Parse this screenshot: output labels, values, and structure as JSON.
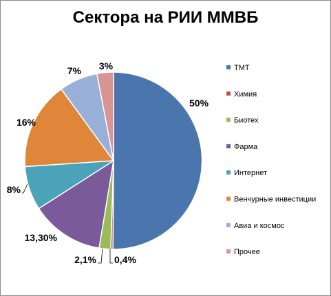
{
  "chart_data": {
    "type": "pie",
    "title": "Сектора на РИИ ММВБ",
    "slices": [
      {
        "name": "ТМТ",
        "value": 50,
        "label": "50%",
        "color": "#4a76ad"
      },
      {
        "name": "Химия",
        "value": 0.4,
        "label": "0,4%",
        "color": "#c0504d"
      },
      {
        "name": "Биотех",
        "value": 2.1,
        "label": "2,1%",
        "color": "#9bbb59"
      },
      {
        "name": "Фарма",
        "value": 13.3,
        "label": "13,30%",
        "color": "#7b5a9c"
      },
      {
        "name": "Интернет",
        "value": 8,
        "label": "8%",
        "color": "#4aa3b8"
      },
      {
        "name": "Венчурные инвестиции",
        "value": 16,
        "label": "16%",
        "color": "#e0863a"
      },
      {
        "name": "Авиа и космос",
        "value": 7,
        "label": "7%",
        "color": "#98b0d8"
      },
      {
        "name": "Прочее",
        "value": 3,
        "label": "3%",
        "color": "#d99593"
      }
    ],
    "legend_position": "right"
  }
}
